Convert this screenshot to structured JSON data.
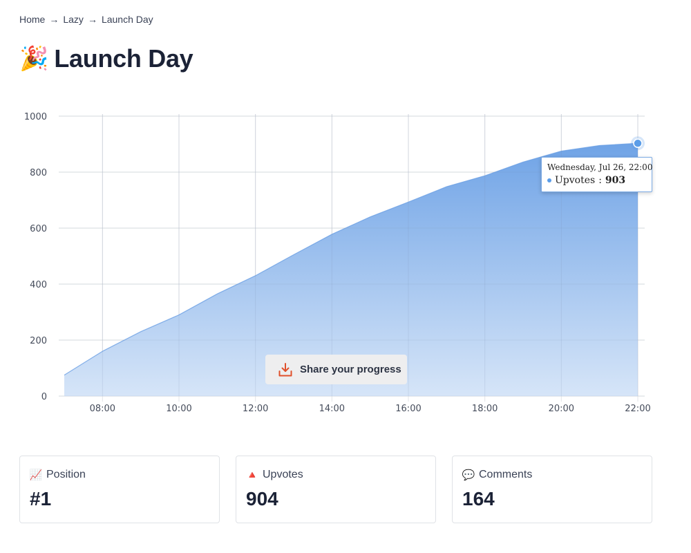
{
  "breadcrumb": {
    "items": [
      "Home",
      "Lazy",
      "Launch Day"
    ],
    "separator": "→"
  },
  "page": {
    "title_emoji": "🎉",
    "title": "Launch Day"
  },
  "share_button": {
    "label": "Share your progress",
    "icon": "download-icon",
    "icon_color": "#e0502b"
  },
  "tooltip": {
    "date": "Wednesday, Jul 26, 22:00",
    "series": "Upvotes",
    "value": "903"
  },
  "stats": [
    {
      "icon": "📈",
      "icon_name": "chart-increasing-icon",
      "label": "Position",
      "value": "#1"
    },
    {
      "icon": "🔺",
      "icon_name": "red-triangle-icon",
      "label": "Upvotes",
      "value": "904"
    },
    {
      "icon": "💬",
      "icon_name": "speech-bubble-icon",
      "label": "Comments",
      "value": "164"
    }
  ],
  "colors": {
    "area_top": "#6fa3e6",
    "area_bottom": "#d6e5f8",
    "marker": "#5b9de8",
    "text_dark": "#1b2236"
  },
  "chart_data": {
    "type": "area",
    "x": [
      "07:00",
      "08:00",
      "09:00",
      "10:00",
      "11:00",
      "12:00",
      "13:00",
      "14:00",
      "15:00",
      "16:00",
      "17:00",
      "18:00",
      "19:00",
      "20:00",
      "21:00",
      "22:00"
    ],
    "series": [
      {
        "name": "Upvotes",
        "values": [
          75,
          160,
          230,
          290,
          365,
          430,
          505,
          578,
          640,
          693,
          748,
          787,
          836,
          875,
          895,
          903
        ]
      }
    ],
    "xticks": [
      "08:00",
      "10:00",
      "12:00",
      "14:00",
      "16:00",
      "18:00",
      "20:00",
      "22:00"
    ],
    "yticks": [
      0,
      200,
      400,
      600,
      800,
      1000
    ],
    "ylim": [
      0,
      1000
    ],
    "grid": true,
    "highlighted_point": "22:00"
  }
}
